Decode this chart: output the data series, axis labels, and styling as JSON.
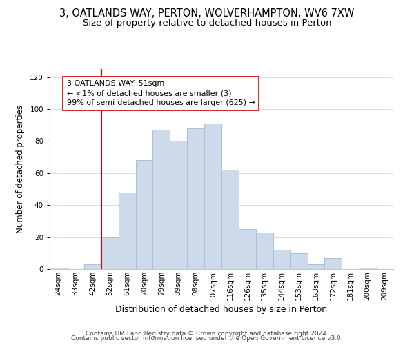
{
  "title": "3, OATLANDS WAY, PERTON, WOLVERHAMPTON, WV6 7XW",
  "subtitle": "Size of property relative to detached houses in Perton",
  "xlabel": "Distribution of detached houses by size in Perton",
  "ylabel": "Number of detached properties",
  "categories": [
    "24sqm",
    "33sqm",
    "42sqm",
    "52sqm",
    "61sqm",
    "70sqm",
    "79sqm",
    "89sqm",
    "98sqm",
    "107sqm",
    "116sqm",
    "126sqm",
    "135sqm",
    "144sqm",
    "153sqm",
    "163sqm",
    "172sqm",
    "181sqm",
    "200sqm",
    "209sqm"
  ],
  "values": [
    1,
    0,
    3,
    20,
    48,
    68,
    87,
    80,
    88,
    91,
    62,
    25,
    23,
    12,
    10,
    3,
    7,
    0,
    1,
    0
  ],
  "bar_color": "#ccdaea",
  "bar_edgecolor": "#a8c0d8",
  "vline_x_index": 3,
  "vline_color": "#cc0000",
  "annotation_text": "3 OATLANDS WAY: 51sqm\n← <1% of detached houses are smaller (3)\n99% of semi-detached houses are larger (625) →",
  "annotation_box_edgecolor": "#cc0000",
  "annotation_box_facecolor": "#ffffff",
  "ylim": [
    0,
    125
  ],
  "yticks": [
    0,
    20,
    40,
    60,
    80,
    100,
    120
  ],
  "footer_line1": "Contains HM Land Registry data © Crown copyright and database right 2024.",
  "footer_line2": "Contains public sector information licensed under the Open Government Licence v3.0.",
  "background_color": "#ffffff",
  "grid_color": "#d0dce8",
  "title_fontsize": 10.5,
  "subtitle_fontsize": 9.5,
  "xlabel_fontsize": 9,
  "ylabel_fontsize": 8.5,
  "tick_fontsize": 7.5,
  "annotation_fontsize": 8,
  "footer_fontsize": 6.5
}
